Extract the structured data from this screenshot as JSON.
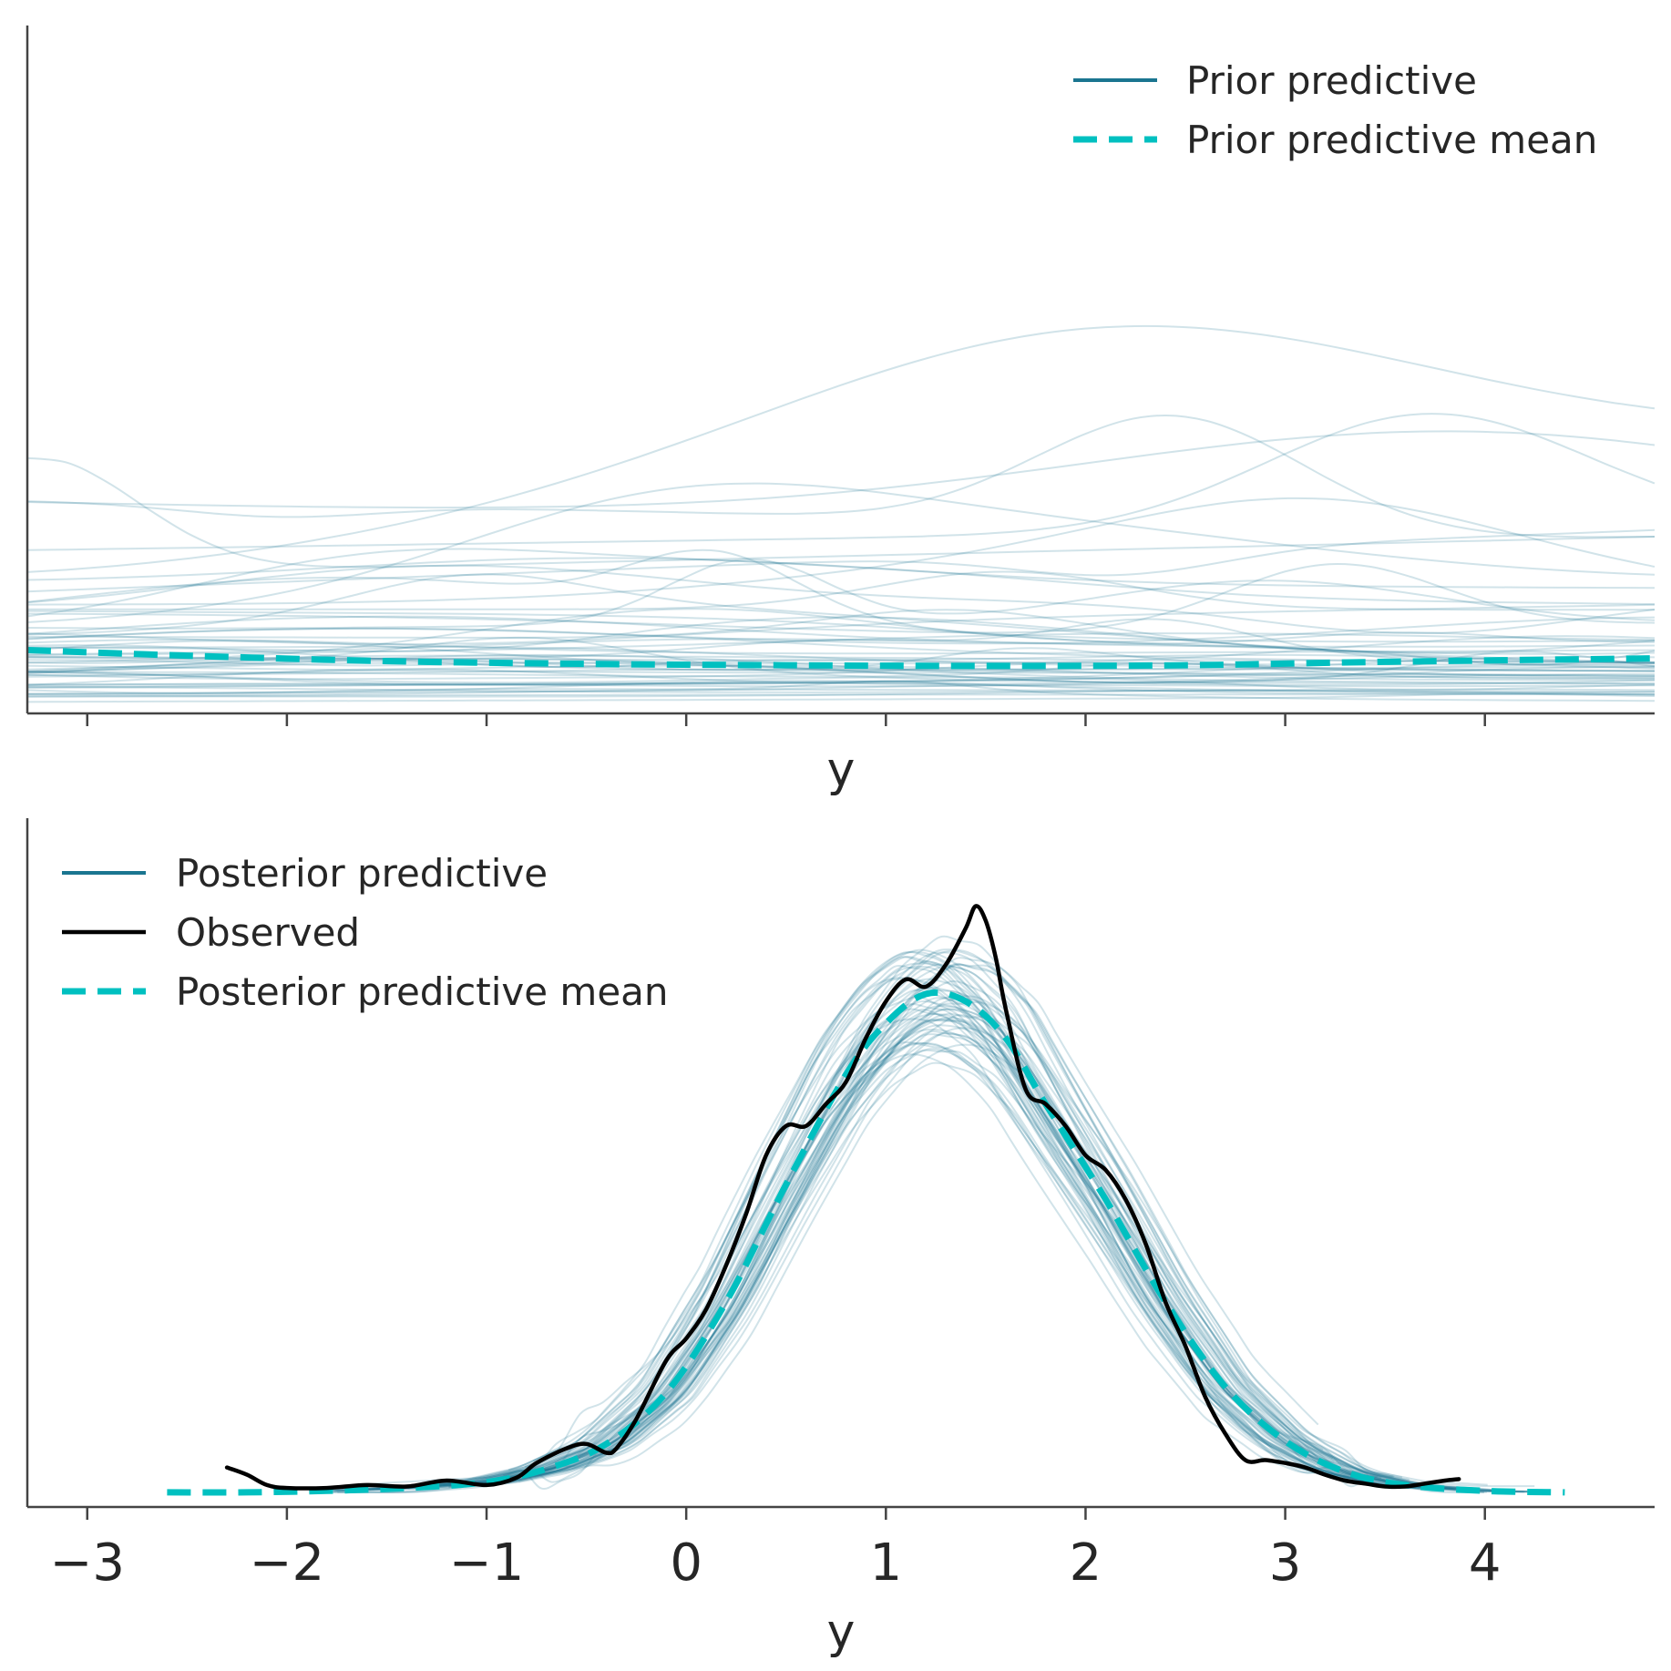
{
  "chart_data": [
    {
      "type": "line",
      "panel": "prior",
      "xlabel": "y",
      "ylabel": "",
      "xlim": [
        -3.3,
        4.85
      ],
      "ylim": [
        0,
        1
      ],
      "x_ticks": [
        -3,
        -2,
        -1,
        0,
        1,
        2,
        3,
        4
      ],
      "show_tick_labels": false,
      "grid": false,
      "legend_position": "top-right",
      "legend": [
        {
          "label": "Prior predictive",
          "style": "solid",
          "color": "#1a7590"
        },
        {
          "label": "Prior predictive mean",
          "style": "dashed",
          "color": "#00c0c0"
        }
      ],
      "series": [
        {
          "name": "Prior predictive mean",
          "style": "dashed",
          "color": "#00c0c0",
          "x": [
            -3.3,
            -2.5,
            -1.5,
            -0.5,
            0.5,
            1.5,
            2.5,
            3.5,
            4.85
          ],
          "y": [
            0.092,
            0.084,
            0.076,
            0.072,
            0.07,
            0.069,
            0.07,
            0.075,
            0.08
          ]
        },
        {
          "name": "Prior predictive",
          "style": "samples",
          "color": "#1a7590",
          "note": "approximately 60 faint prior predictive density curves spanning the full x range"
        }
      ]
    },
    {
      "type": "line",
      "panel": "posterior",
      "xlabel": "y",
      "ylabel": "",
      "xlim": [
        -3.3,
        4.85
      ],
      "ylim": [
        -0.01,
        0.46
      ],
      "x_ticks": [
        -3,
        -2,
        -1,
        0,
        1,
        2,
        3,
        4
      ],
      "x_tick_labels": [
        "−3",
        "−2",
        "−1",
        "0",
        "1",
        "2",
        "3",
        "4"
      ],
      "grid": false,
      "legend_position": "top-left",
      "legend": [
        {
          "label": "Posterior predictive",
          "style": "solid",
          "color": "#1a7590"
        },
        {
          "label": "Observed",
          "style": "solid",
          "color": "#000000"
        },
        {
          "label": "Posterior predictive mean",
          "style": "dashed",
          "color": "#00c0c0"
        }
      ],
      "series": [
        {
          "name": "Observed",
          "style": "solid",
          "color": "#000000",
          "x": [
            -2.3,
            -2.2,
            -2.1,
            -2.0,
            -1.8,
            -1.6,
            -1.4,
            -1.2,
            -1.0,
            -0.85,
            -0.75,
            -0.6,
            -0.5,
            -0.4,
            -0.35,
            -0.25,
            -0.1,
            0.0,
            0.1,
            0.2,
            0.3,
            0.4,
            0.5,
            0.6,
            0.7,
            0.8,
            0.9,
            1.0,
            1.1,
            1.2,
            1.3,
            1.4,
            1.45,
            1.5,
            1.55,
            1.6,
            1.7,
            1.8,
            1.9,
            2.0,
            2.1,
            2.2,
            2.3,
            2.4,
            2.5,
            2.6,
            2.7,
            2.8,
            2.9,
            3.0,
            3.1,
            3.2,
            3.3,
            3.4,
            3.5,
            3.6,
            3.7,
            3.8,
            3.87
          ],
          "y": [
            0.017,
            0.012,
            0.005,
            0.003,
            0.003,
            0.005,
            0.004,
            0.008,
            0.005,
            0.01,
            0.02,
            0.03,
            0.033,
            0.027,
            0.03,
            0.05,
            0.09,
            0.105,
            0.125,
            0.155,
            0.19,
            0.23,
            0.25,
            0.25,
            0.265,
            0.28,
            0.31,
            0.335,
            0.35,
            0.345,
            0.36,
            0.385,
            0.4,
            0.39,
            0.365,
            0.33,
            0.275,
            0.265,
            0.25,
            0.23,
            0.22,
            0.2,
            0.17,
            0.13,
            0.1,
            0.065,
            0.04,
            0.022,
            0.022,
            0.02,
            0.017,
            0.012,
            0.008,
            0.006,
            0.004,
            0.004,
            0.006,
            0.008,
            0.009
          ]
        },
        {
          "name": "Posterior predictive mean",
          "style": "dashed",
          "color": "#00c0c0",
          "x": [
            -2.6,
            -2.2,
            -1.8,
            -1.4,
            -1.0,
            -0.7,
            -0.4,
            -0.1,
            0.2,
            0.5,
            0.8,
            1.0,
            1.2,
            1.4,
            1.6,
            1.8,
            2.1,
            2.4,
            2.7,
            3.0,
            3.3,
            3.6,
            4.0,
            4.4
          ],
          "y": [
            0.0,
            0.0,
            0.001,
            0.003,
            0.007,
            0.016,
            0.033,
            0.068,
            0.13,
            0.21,
            0.285,
            0.32,
            0.34,
            0.335,
            0.31,
            0.265,
            0.2,
            0.13,
            0.072,
            0.035,
            0.014,
            0.005,
            0.001,
            0.0
          ]
        },
        {
          "name": "Posterior predictive",
          "style": "samples",
          "color": "#1a7590",
          "note": "approximately 60 faint posterior predictive density curves clustered around the mean"
        }
      ]
    }
  ]
}
